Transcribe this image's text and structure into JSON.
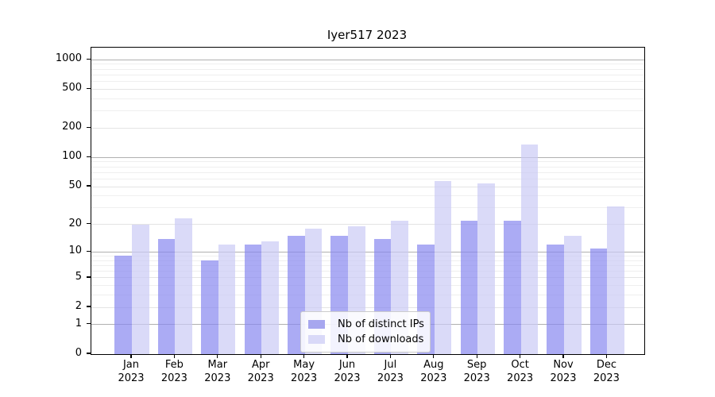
{
  "chart_data": {
    "type": "bar",
    "title": "Iyer517 2023",
    "categories": [
      "Jan",
      "Feb",
      "Mar",
      "Apr",
      "May",
      "Jun",
      "Jul",
      "Aug",
      "Sep",
      "Oct",
      "Nov",
      "Dec"
    ],
    "year": "2023",
    "series": [
      {
        "name": "Nb of distinct IPs",
        "color": "rgba(135,135,240,0.7)",
        "legend_color": "#a7a7ef",
        "values": [
          9,
          14,
          8,
          12,
          15,
          15,
          14,
          12,
          22,
          22,
          12,
          11
        ]
      },
      {
        "name": "Nb of downloads",
        "color": "rgba(202,202,245,0.7)",
        "legend_color": "#d9d9f8",
        "values": [
          20,
          23,
          12,
          13,
          18,
          19,
          22,
          57,
          54,
          136,
          15,
          31
        ]
      }
    ],
    "y_axis": {
      "scale": "log1p",
      "ticks": [
        0,
        1,
        2,
        5,
        10,
        20,
        50,
        100,
        200,
        500,
        1000
      ],
      "major_gridlines": [
        1,
        10,
        100,
        1000
      ],
      "tick_gridlines": [
        2,
        5,
        20,
        50,
        200,
        500
      ],
      "minor_gridlines": [
        3,
        4,
        6,
        7,
        8,
        9,
        30,
        40,
        60,
        70,
        80,
        90,
        300,
        400,
        600,
        700,
        800,
        900
      ],
      "ylim": [
        0,
        1330
      ]
    },
    "x_axis": {
      "tick_label_line2": "2023"
    },
    "legend": {
      "position": "lower center",
      "entries": [
        "Nb of distinct IPs",
        "Nb of downloads"
      ]
    },
    "grid": true
  },
  "colors": {
    "axis": "#000000",
    "grid_major": "#b0b0b0",
    "grid_minor": "#efefef",
    "background": "#ffffff"
  }
}
